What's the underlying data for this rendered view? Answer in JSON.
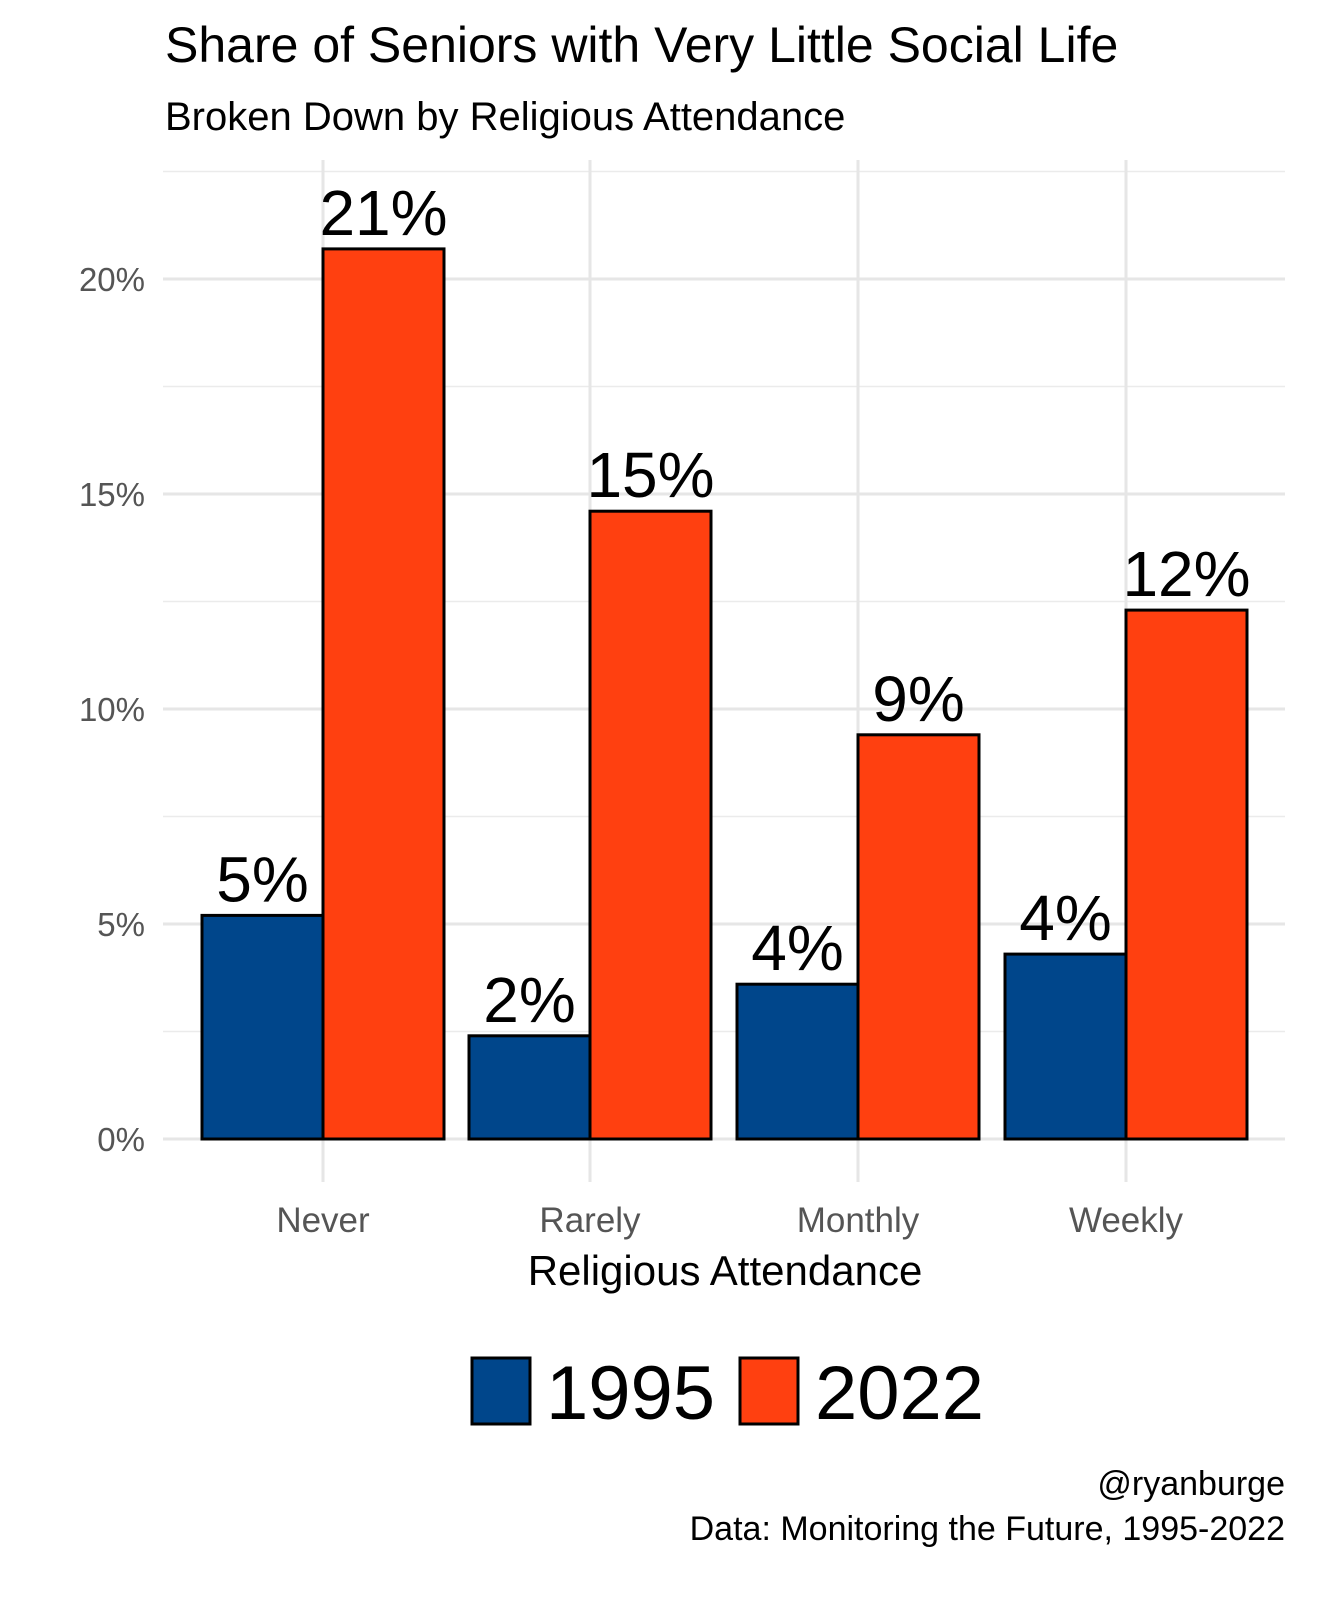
{
  "chart_data": {
    "type": "bar",
    "title": "Share of Seniors with Very Little Social Life",
    "subtitle": "Broken Down by Religious Attendance",
    "xlabel": "Religious Attendance",
    "ylabel": "",
    "categories": [
      "Never",
      "Rarely",
      "Monthly",
      "Weekly"
    ],
    "series": [
      {
        "name": "1995",
        "color": "#00468B",
        "values": [
          5.2,
          2.4,
          3.6,
          4.3
        ],
        "labels": [
          "5%",
          "2%",
          "4%",
          "4%"
        ]
      },
      {
        "name": "2022",
        "color": "#FF4010",
        "values": [
          20.7,
          14.6,
          9.4,
          12.3
        ],
        "labels": [
          "21%",
          "15%",
          "9%",
          "12%"
        ]
      }
    ],
    "ylim": [
      0,
      22.5
    ],
    "yticks": [
      0,
      5,
      10,
      15,
      20
    ],
    "ytick_labels": [
      "0%",
      "5%",
      "10%",
      "15%",
      "20%"
    ],
    "grid": true,
    "legend_position": "bottom",
    "caption_lines": [
      "@ryanburge",
      "Data: Monitoring the Future, 1995-2022"
    ]
  }
}
